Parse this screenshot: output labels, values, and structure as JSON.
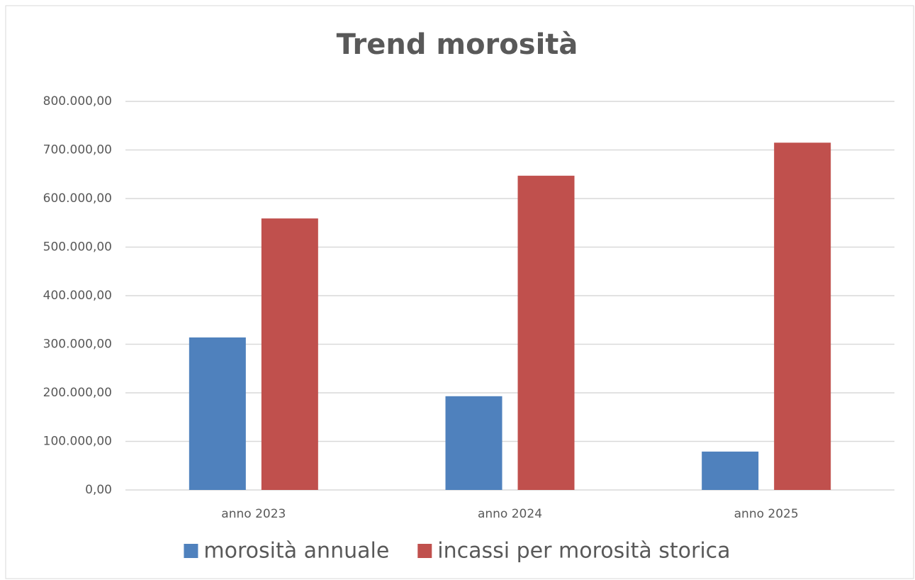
{
  "chart_data": {
    "type": "bar",
    "title": "Trend morosità",
    "categories": [
      "anno 2023",
      "anno 2024",
      "anno 2025"
    ],
    "series": [
      {
        "name": "morosità annuale",
        "color": "#4f81bd",
        "values": [
          314000,
          193000,
          79000
        ]
      },
      {
        "name": "incassi per morosità storica",
        "color": "#c0504d",
        "values": [
          559000,
          647000,
          715000
        ]
      }
    ],
    "ylim": [
      0,
      800000
    ],
    "yticks": [
      {
        "value": 0,
        "label": "0,00"
      },
      {
        "value": 100000,
        "label": "100.000,00"
      },
      {
        "value": 200000,
        "label": "200.000,00"
      },
      {
        "value": 300000,
        "label": "300.000,00"
      },
      {
        "value": 400000,
        "label": "400.000,00"
      },
      {
        "value": 500000,
        "label": "500.000,00"
      },
      {
        "value": 600000,
        "label": "600.000,00"
      },
      {
        "value": 700000,
        "label": "700.000,00"
      },
      {
        "value": 800000,
        "label": "800.000,00"
      }
    ],
    "grid": true,
    "legend": "bottom"
  }
}
